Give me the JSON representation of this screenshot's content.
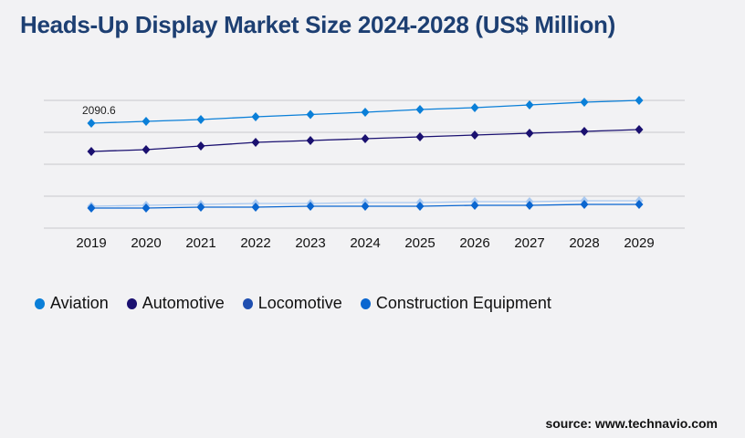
{
  "title": "Heads-Up Display Market Size 2024-2028 (US$ Million)",
  "source": "source: www.technavio.com",
  "chart_data": {
    "type": "line",
    "title": "Heads-Up Display Market Size 2024-2028 (US$ Million)",
    "categories": [
      "2019",
      "2020",
      "2021",
      "2022",
      "2023",
      "2024",
      "2025",
      "2026",
      "2027",
      "2028",
      "2029"
    ],
    "ylim": [
      0,
      2545
    ],
    "grid": true,
    "legend_position": "bottom-left",
    "annotations": [
      {
        "series": "Aviation",
        "category": "2019",
        "text": "2090.6"
      }
    ],
    "series": [
      {
        "name": "Aviation",
        "color": "#0a7fd8",
        "line_color": "#0a7fd8",
        "values": [
          2090.6,
          2127,
          2163,
          2218,
          2263,
          2309,
          2363,
          2400,
          2454,
          2509,
          2545
        ]
      },
      {
        "name": "Automotive",
        "color": "#1a1070",
        "line_color": "#1a1070",
        "values": [
          1527,
          1563,
          1636,
          1709,
          1745,
          1782,
          1818,
          1854,
          1891,
          1927,
          1963
        ]
      },
      {
        "name": "Locomotive",
        "color": "#1f4fb0",
        "line_color": "#a8c8f0",
        "values": [
          436,
          455,
          473,
          491,
          491,
          509,
          509,
          527,
          527,
          545,
          545
        ]
      },
      {
        "name": "Construction Equipment",
        "color": "#0a66d0",
        "line_color": "#0a66d0",
        "values": [
          400,
          400,
          418,
          418,
          436,
          436,
          436,
          455,
          455,
          473,
          473
        ]
      }
    ]
  }
}
